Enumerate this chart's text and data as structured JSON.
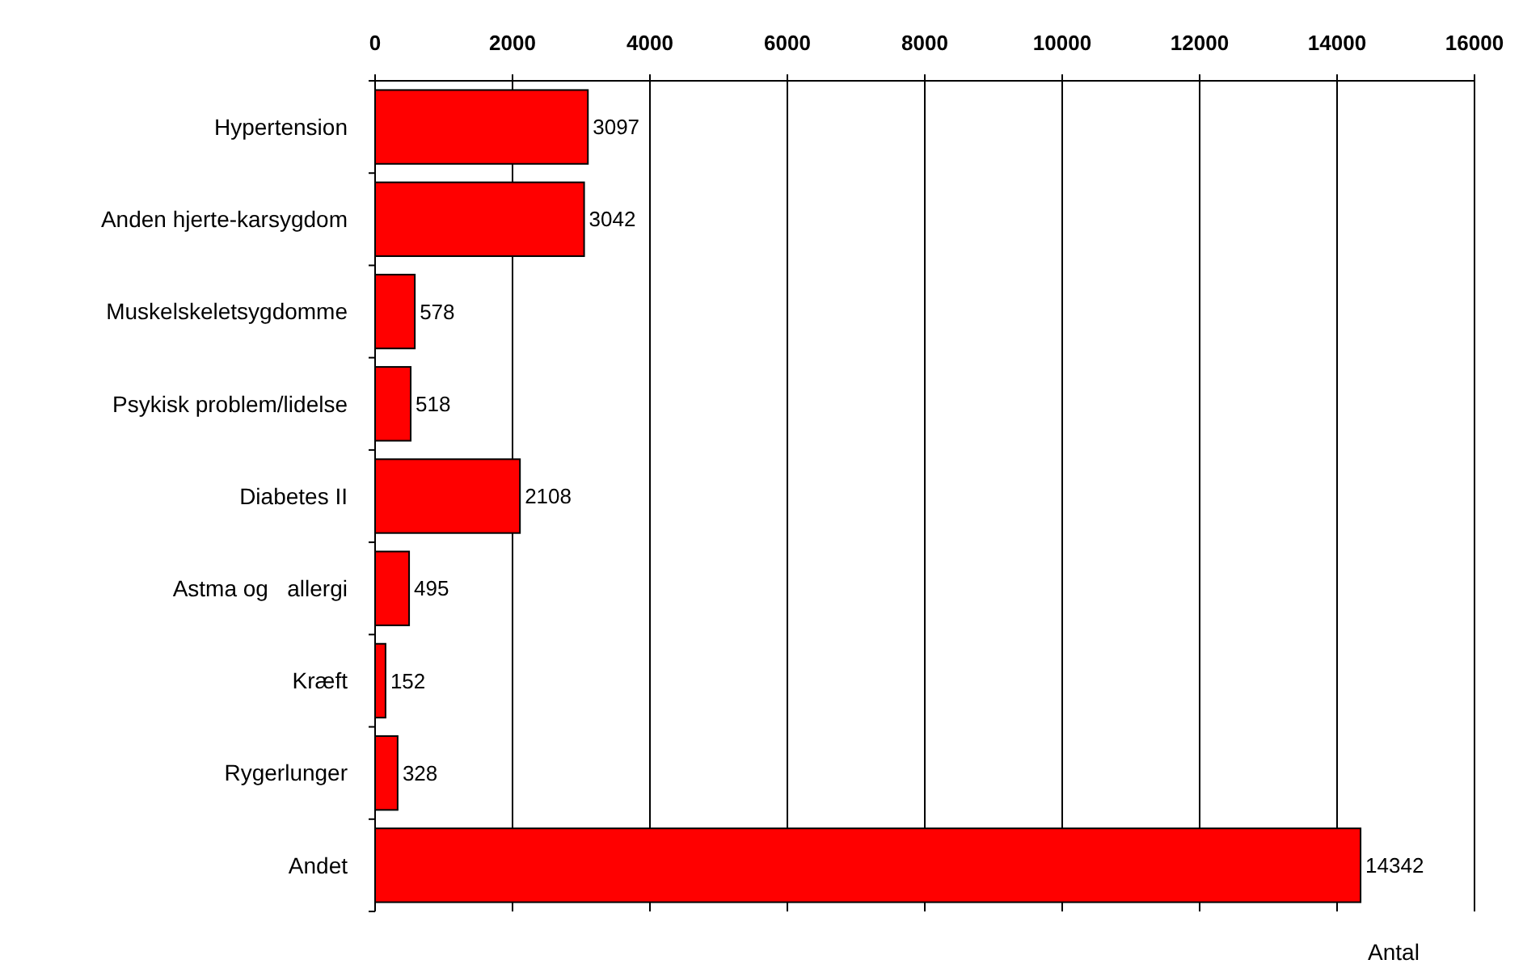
{
  "chart_data": {
    "type": "bar",
    "orientation": "horizontal",
    "xlabel": "Antal",
    "categories": [
      "Hypertension",
      "Anden hjerte-karsygdom",
      "Muskelskeletsygdomme",
      "Psykisk problem/lidelse",
      "Diabetes II",
      "Astma og   allergi",
      "Kræft",
      "Rygerlunger",
      "Andet"
    ],
    "values": [
      3097,
      3042,
      578,
      518,
      2108,
      495,
      152,
      328,
      14342
    ],
    "color": "#ff0000",
    "xlim": [
      0,
      16000
    ],
    "xticks": [
      0,
      2000,
      4000,
      6000,
      8000,
      10000,
      12000,
      14000,
      16000
    ],
    "grid": "x",
    "data_labels": true
  }
}
